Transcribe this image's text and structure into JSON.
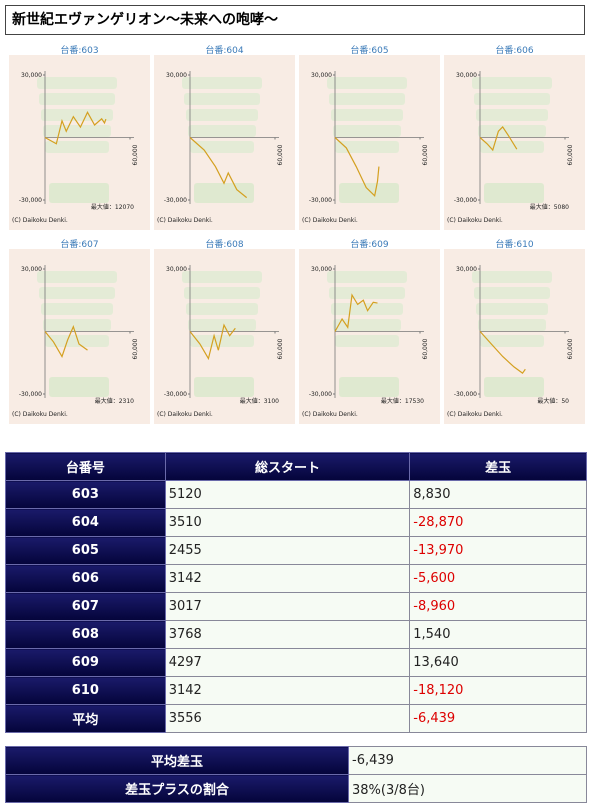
{
  "header": {
    "title": "新世紀エヴァンゲリオン～未来への咆哮～"
  },
  "chart_data": [
    {
      "type": "line",
      "title": "台番:603",
      "credit": "(C) Daikoku Denki.",
      "max_label": "最大値：12070",
      "xlim": [
        0,
        60000
      ],
      "xticks": [
        {
          "value": 60000,
          "label": "60,000"
        }
      ],
      "ylim": [
        -30000,
        30000
      ],
      "yticks": [
        {
          "value": 30000,
          "label": "30,000"
        },
        {
          "value": -30000,
          "label": "-30,000"
        }
      ],
      "series": [
        {
          "color": "#d4a020",
          "x": [
            0,
            8000,
            12000,
            15000,
            20000,
            25000,
            30000,
            35000,
            40000,
            42000,
            43000
          ],
          "values": [
            0,
            -3000,
            8000,
            3000,
            10000,
            5000,
            12070,
            6000,
            9000,
            7000,
            8830
          ]
        }
      ]
    },
    {
      "type": "line",
      "title": "台番:604",
      "credit": "(C) Daikoku Denki.",
      "xlim": [
        0,
        60000
      ],
      "xticks": [
        {
          "value": 60000,
          "label": "60,000"
        }
      ],
      "ylim": [
        -30000,
        30000
      ],
      "yticks": [
        {
          "value": 30000,
          "label": "30,000"
        },
        {
          "value": -30000,
          "label": "-30,000"
        }
      ],
      "series": [
        {
          "color": "#d4a020",
          "x": [
            0,
            10000,
            18000,
            24000,
            27000,
            33000,
            40000
          ],
          "values": [
            0,
            -6000,
            -14000,
            -22000,
            -17000,
            -25000,
            -28870
          ]
        }
      ]
    },
    {
      "type": "line",
      "title": "台番:605",
      "credit": "(C) Daikoku Denki.",
      "xlim": [
        0,
        60000
      ],
      "xticks": [
        {
          "value": 60000,
          "label": "60,000"
        }
      ],
      "ylim": [
        -30000,
        30000
      ],
      "yticks": [
        {
          "value": 30000,
          "label": "30,000"
        },
        {
          "value": -30000,
          "label": "-30,000"
        }
      ],
      "series": [
        {
          "color": "#d4a020",
          "x": [
            0,
            8000,
            15000,
            22000,
            28000,
            30000,
            31000
          ],
          "values": [
            0,
            -5000,
            -14000,
            -24000,
            -28000,
            -21000,
            -13970
          ]
        }
      ]
    },
    {
      "type": "line",
      "title": "台番:606",
      "credit": "(C) Daikoku Denki.",
      "max_label": "最大値：5080",
      "xlim": [
        0,
        60000
      ],
      "xticks": [
        {
          "value": 60000,
          "label": "60,000"
        }
      ],
      "ylim": [
        -30000,
        30000
      ],
      "yticks": [
        {
          "value": 30000,
          "label": "30,000"
        },
        {
          "value": -30000,
          "label": "-30,000"
        }
      ],
      "series": [
        {
          "color": "#d4a020",
          "x": [
            0,
            5000,
            9000,
            13000,
            16000,
            20000,
            26000
          ],
          "values": [
            0,
            -3000,
            -6000,
            3000,
            5080,
            1000,
            -5600
          ]
        }
      ]
    },
    {
      "type": "line",
      "title": "台番:607",
      "credit": "(C) Daikoku Denki.",
      "max_label": "最大値：2310",
      "xlim": [
        0,
        60000
      ],
      "xticks": [
        {
          "value": 60000,
          "label": "60,000"
        }
      ],
      "ylim": [
        -30000,
        30000
      ],
      "yticks": [
        {
          "value": 30000,
          "label": "30,000"
        },
        {
          "value": -30000,
          "label": "-30,000"
        }
      ],
      "series": [
        {
          "color": "#d4a020",
          "x": [
            0,
            6000,
            12000,
            16000,
            20000,
            24000,
            30000
          ],
          "values": [
            0,
            -5000,
            -12000,
            -4000,
            2310,
            -6000,
            -8960
          ]
        }
      ]
    },
    {
      "type": "line",
      "title": "台番:608",
      "credit": "(C) Daikoku Denki.",
      "max_label": "最大値：3100",
      "xlim": [
        0,
        60000
      ],
      "xticks": [
        {
          "value": 60000,
          "label": "60,000"
        }
      ],
      "ylim": [
        -30000,
        30000
      ],
      "yticks": [
        {
          "value": 30000,
          "label": "30,000"
        },
        {
          "value": -30000,
          "label": "-30,000"
        }
      ],
      "series": [
        {
          "color": "#d4a020",
          "x": [
            0,
            7000,
            13000,
            17000,
            20000,
            24000,
            28000,
            32000
          ],
          "values": [
            0,
            -6000,
            -13000,
            -2000,
            -9000,
            3100,
            -2000,
            1540
          ]
        }
      ]
    },
    {
      "type": "line",
      "title": "台番:609",
      "credit": "(C) Daikoku Denki.",
      "max_label": "最大値：17530",
      "xlim": [
        0,
        60000
      ],
      "xticks": [
        {
          "value": 60000,
          "label": "60,000"
        }
      ],
      "ylim": [
        -30000,
        30000
      ],
      "yticks": [
        {
          "value": 30000,
          "label": "30,000"
        },
        {
          "value": -30000,
          "label": "-30,000"
        }
      ],
      "series": [
        {
          "color": "#d4a020",
          "x": [
            0,
            5000,
            9000,
            12000,
            16000,
            20000,
            23000,
            27000,
            30000
          ],
          "values": [
            0,
            6000,
            2000,
            17530,
            13000,
            15000,
            10000,
            14000,
            13640
          ]
        }
      ]
    },
    {
      "type": "line",
      "title": "台番:610",
      "credit": "(C) Daikoku Denki.",
      "max_label": "最大値：50",
      "xlim": [
        0,
        60000
      ],
      "xticks": [
        {
          "value": 60000,
          "label": "60,000"
        }
      ],
      "ylim": [
        -30000,
        30000
      ],
      "yticks": [
        {
          "value": 30000,
          "label": "30,000"
        },
        {
          "value": -30000,
          "label": "-30,000"
        }
      ],
      "series": [
        {
          "color": "#d4a020",
          "x": [
            0,
            8000,
            16000,
            24000,
            30000,
            32000
          ],
          "values": [
            50,
            -6000,
            -12000,
            -17000,
            -20000,
            -18120
          ]
        }
      ]
    }
  ],
  "table": {
    "columns": [
      "台番号",
      "総スタート",
      "差玉"
    ],
    "rows": [
      [
        "603",
        "5120",
        "8,830"
      ],
      [
        "604",
        "3510",
        "-28,870"
      ],
      [
        "605",
        "2455",
        "-13,970"
      ],
      [
        "606",
        "3142",
        "-5,600"
      ],
      [
        "607",
        "3017",
        "-8,960"
      ],
      [
        "608",
        "3768",
        "1,540"
      ],
      [
        "609",
        "4297",
        "13,640"
      ],
      [
        "610",
        "3142",
        "-18,120"
      ],
      [
        "平均",
        "3556",
        "-6,439"
      ]
    ]
  },
  "summary": {
    "rows": [
      [
        "平均差玉",
        "-6,439"
      ],
      [
        "差玉プラスの割合",
        "38%(3/8台)"
      ]
    ]
  }
}
